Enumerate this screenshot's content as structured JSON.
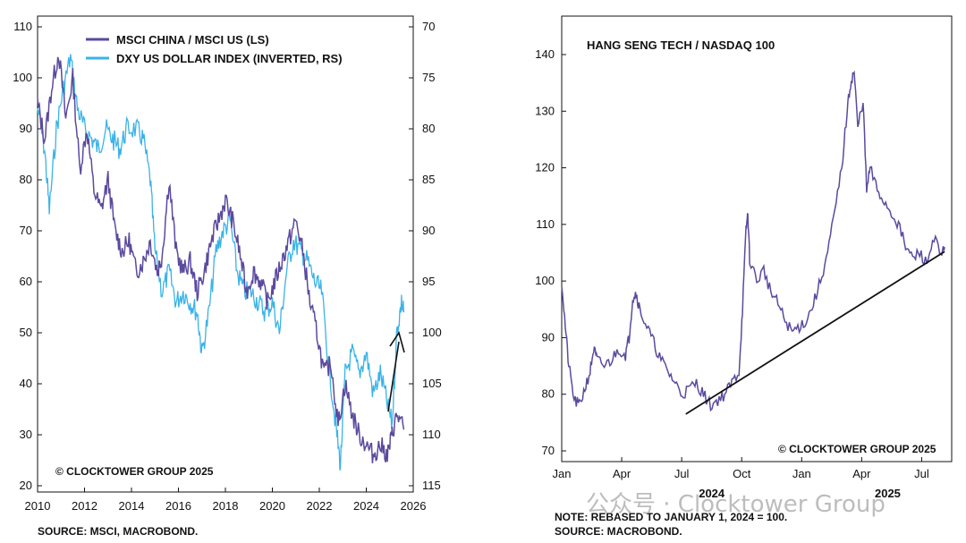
{
  "chart_data": [
    {
      "type": "line",
      "title": "",
      "series": [
        {
          "name": "MSCI CHINA / MSCI US (LS)",
          "axis": "left",
          "color": "#5b4a9e",
          "points": [
            [
              2010,
              95
            ],
            [
              2010.3,
              88
            ],
            [
              2010.6,
              98
            ],
            [
              2010.9,
              105
            ],
            [
              2011.2,
              92
            ],
            [
              2011.5,
              100
            ],
            [
              2011.8,
              82
            ],
            [
              2012.1,
              90
            ],
            [
              2012.4,
              78
            ],
            [
              2012.7,
              74
            ],
            [
              2013.0,
              80
            ],
            [
              2013.3,
              70
            ],
            [
              2013.6,
              66
            ],
            [
              2013.9,
              68
            ],
            [
              2014.2,
              62
            ],
            [
              2014.5,
              64
            ],
            [
              2014.8,
              68
            ],
            [
              2015.1,
              62
            ],
            [
              2015.3,
              65
            ],
            [
              2015.6,
              80
            ],
            [
              2015.9,
              66
            ],
            [
              2016.2,
              62
            ],
            [
              2016.5,
              64
            ],
            [
              2016.8,
              58
            ],
            [
              2017.1,
              62
            ],
            [
              2017.4,
              68
            ],
            [
              2017.7,
              72
            ],
            [
              2018.0,
              76
            ],
            [
              2018.3,
              72
            ],
            [
              2018.6,
              66
            ],
            [
              2018.9,
              58
            ],
            [
              2019.2,
              62
            ],
            [
              2019.5,
              60
            ],
            [
              2019.8,
              56
            ],
            [
              2020.1,
              60
            ],
            [
              2020.4,
              64
            ],
            [
              2020.7,
              68
            ],
            [
              2021.0,
              72
            ],
            [
              2021.3,
              66
            ],
            [
              2021.6,
              56
            ],
            [
              2021.9,
              50
            ],
            [
              2022.2,
              42
            ],
            [
              2022.5,
              44
            ],
            [
              2022.8,
              32
            ],
            [
              2023.1,
              40
            ],
            [
              2023.4,
              34
            ],
            [
              2023.7,
              30
            ],
            [
              2024.0,
              28
            ],
            [
              2024.3,
              26
            ],
            [
              2024.6,
              28
            ],
            [
              2024.9,
              26
            ],
            [
              2025.1,
              30
            ],
            [
              2025.3,
              34
            ],
            [
              2025.6,
              31
            ]
          ]
        },
        {
          "name": "DXY US DOLLAR INDEX (INVERTED, RS)",
          "axis": "right",
          "color": "#3ab3e8",
          "points": [
            [
              2010,
              78
            ],
            [
              2010.3,
              82
            ],
            [
              2010.5,
              88
            ],
            [
              2010.8,
              80
            ],
            [
              2011.1,
              76
            ],
            [
              2011.4,
              73
            ],
            [
              2011.7,
              78
            ],
            [
              2012.0,
              80
            ],
            [
              2012.3,
              81
            ],
            [
              2012.6,
              82
            ],
            [
              2012.9,
              80
            ],
            [
              2013.2,
              81
            ],
            [
              2013.5,
              82
            ],
            [
              2013.8,
              80
            ],
            [
              2014.2,
              80
            ],
            [
              2014.5,
              81
            ],
            [
              2014.8,
              85
            ],
            [
              2015.0,
              92
            ],
            [
              2015.3,
              96
            ],
            [
              2015.6,
              94
            ],
            [
              2015.9,
              97
            ],
            [
              2016.2,
              96
            ],
            [
              2016.5,
              97
            ],
            [
              2016.8,
              98
            ],
            [
              2017.0,
              102
            ],
            [
              2017.3,
              98
            ],
            [
              2017.6,
              92
            ],
            [
              2017.9,
              90
            ],
            [
              2018.2,
              89
            ],
            [
              2018.5,
              94
            ],
            [
              2018.8,
              96
            ],
            [
              2019.1,
              96
            ],
            [
              2019.4,
              97
            ],
            [
              2019.7,
              98
            ],
            [
              2020.0,
              97
            ],
            [
              2020.3,
              100
            ],
            [
              2020.6,
              94
            ],
            [
              2020.9,
              91
            ],
            [
              2021.2,
              92
            ],
            [
              2021.5,
              93
            ],
            [
              2021.8,
              95
            ],
            [
              2022.1,
              96
            ],
            [
              2022.4,
              103
            ],
            [
              2022.7,
              109
            ],
            [
              2022.9,
              113
            ],
            [
              2023.1,
              104
            ],
            [
              2023.4,
              102
            ],
            [
              2023.7,
              104
            ],
            [
              2024.0,
              102
            ],
            [
              2024.3,
              106
            ],
            [
              2024.6,
              104
            ],
            [
              2024.9,
              107
            ],
            [
              2025.1,
              109
            ],
            [
              2025.3,
              100
            ],
            [
              2025.5,
              97
            ],
            [
              2025.6,
              98
            ]
          ]
        }
      ],
      "xlim": [
        2010,
        2026
      ],
      "ylim_left": [
        20,
        110
      ],
      "ylim_right_inverted": [
        70,
        115
      ],
      "x_ticks": [
        "2010",
        "2012",
        "2014",
        "2016",
        "2018",
        "2020",
        "2022",
        "2024",
        "2026"
      ],
      "y_ticks_left": [
        "20",
        "30",
        "40",
        "50",
        "60",
        "70",
        "80",
        "90",
        "100",
        "110"
      ],
      "y_ticks_right": [
        "70",
        "75",
        "80",
        "85",
        "90",
        "95",
        "100",
        "105",
        "110",
        "115"
      ],
      "legend_position": "top",
      "annotation": "arrow pointing up near 2026",
      "footer": "SOURCE: MSCI, MACROBOND."
    },
    {
      "type": "line",
      "title": "HANG SENG TECH / NASDAQ 100",
      "series": [
        {
          "name": "HANG SENG TECH / NASDAQ 100",
          "color": "#5b4a9e",
          "points": [
            [
              0,
              100
            ],
            [
              0.1,
              92
            ],
            [
              0.2,
              85
            ],
            [
              0.35,
              79
            ],
            [
              0.5,
              78
            ],
            [
              0.65,
              81
            ],
            [
              0.8,
              84
            ],
            [
              0.9,
              88
            ],
            [
              1.0,
              86
            ],
            [
              1.2,
              85
            ],
            [
              1.4,
              86
            ],
            [
              1.6,
              88
            ],
            [
              1.8,
              87
            ],
            [
              1.9,
              90
            ],
            [
              2.0,
              97
            ],
            [
              2.1,
              98
            ],
            [
              2.2,
              95
            ],
            [
              2.4,
              92
            ],
            [
              2.6,
              89
            ],
            [
              2.8,
              86
            ],
            [
              3.0,
              84
            ],
            [
              3.2,
              82
            ],
            [
              3.4,
              80
            ],
            [
              3.6,
              81
            ],
            [
              3.8,
              82
            ],
            [
              4.0,
              80
            ],
            [
              4.2,
              78
            ],
            [
              4.4,
              79
            ],
            [
              4.6,
              80
            ],
            [
              4.8,
              82
            ],
            [
              5.0,
              84
            ],
            [
              5.1,
              95
            ],
            [
              5.2,
              109
            ],
            [
              5.25,
              112
            ],
            [
              5.3,
              104
            ],
            [
              5.5,
              100
            ],
            [
              5.7,
              102
            ],
            [
              5.9,
              98
            ],
            [
              6.1,
              96
            ],
            [
              6.3,
              93
            ],
            [
              6.5,
              91
            ],
            [
              6.7,
              92
            ],
            [
              6.9,
              93
            ],
            [
              7.1,
              96
            ],
            [
              7.3,
              100
            ],
            [
              7.5,
              105
            ],
            [
              7.7,
              112
            ],
            [
              7.9,
              120
            ],
            [
              8.05,
              130
            ],
            [
              8.15,
              135
            ],
            [
              8.25,
              137
            ],
            [
              8.35,
              127
            ],
            [
              8.5,
              132
            ],
            [
              8.6,
              116
            ],
            [
              8.7,
              120
            ],
            [
              8.9,
              116
            ],
            [
              9.1,
              114
            ],
            [
              9.3,
              112
            ],
            [
              9.5,
              110
            ],
            [
              9.7,
              106
            ],
            [
              9.9,
              104
            ],
            [
              10.1,
              105
            ],
            [
              10.3,
              103
            ],
            [
              10.5,
              108
            ],
            [
              10.7,
              104
            ],
            [
              10.8,
              106
            ]
          ]
        }
      ],
      "xlim": [
        0,
        11
      ],
      "ylim": [
        70,
        140
      ],
      "x_ticks": [
        "Jan",
        "Apr",
        "Jul",
        "Oct",
        "Jan",
        "Apr",
        "Jul"
      ],
      "year_labels": [
        "2024",
        "2025"
      ],
      "y_ticks": [
        "70",
        "80",
        "90",
        "100",
        "110",
        "120",
        "130",
        "140"
      ],
      "trendline": [
        [
          3.5,
          76.5
        ],
        [
          10.8,
          105.2
        ]
      ],
      "copyright": "© CLOCKTOWER GROUP 2025",
      "footer_note": "NOTE: REBASED TO JANUARY 1, 2024 = 100.",
      "footer_source": "SOURCE: MACROBOND."
    }
  ],
  "left_chart": {
    "legend1": "MSCI CHINA / MSCI US (LS)",
    "legend2": "DXY US DOLLAR INDEX (INVERTED, RS)",
    "copyright": "© CLOCKTOWER GROUP 2025",
    "source": "SOURCE: MSCI, MACROBOND."
  },
  "right_chart": {
    "title": "HANG SENG TECH / NASDAQ 100",
    "copyright": "© CLOCKTOWER GROUP 2025",
    "note": "NOTE: REBASED TO JANUARY 1, 2024 = 100.",
    "source": "SOURCE: MACROBOND."
  },
  "watermark": "公众号 · Clocktower Group",
  "colors": {
    "purple": "#5b4a9e",
    "blue": "#3ab3e8",
    "axis": "#111111"
  }
}
